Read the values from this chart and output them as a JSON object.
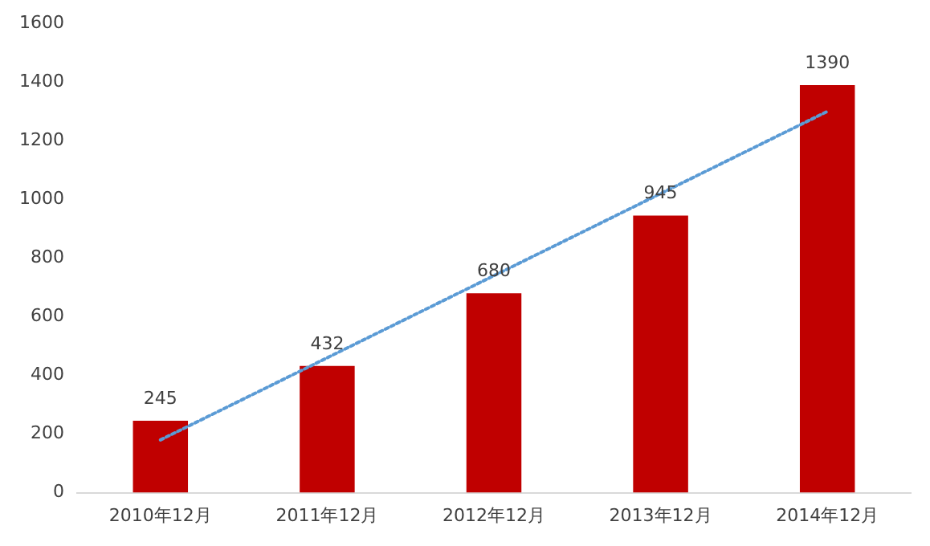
{
  "chart_data": {
    "type": "bar",
    "categories": [
      "2010年12月",
      "2011年12月",
      "2012年12月",
      "2013年12月",
      "2014年12月"
    ],
    "series": [
      {
        "color": "#c00000",
        "values": [
          245,
          432,
          680,
          945,
          1390
        ],
        "value_labels": [
          "245",
          "432",
          "680",
          "945",
          "1390"
        ]
      },
      {
        "type": "line",
        "color": "#5b9bd5",
        "x": [
          "2010年12月",
          "2014年12月"
        ],
        "values": [
          180,
          1300
        ],
        "line_style": "dotted",
        "marker": "none"
      }
    ],
    "ylim": [
      0,
      1600
    ],
    "yticks": [
      0,
      200,
      400,
      600,
      800,
      1000,
      1200,
      1400,
      1600
    ],
    "grid": false,
    "legend": false
  }
}
